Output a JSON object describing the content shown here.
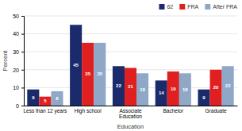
{
  "chart_data": {
    "type": "bar",
    "xlabel": "Education",
    "ylabel": "Percent",
    "categories": [
      "Less than 12 years",
      "High school",
      "Associate\nEducation",
      "Bachelor",
      "Graduate"
    ],
    "series": [
      {
        "name": "62",
        "color": "#1b2a6b",
        "values": [
          9,
          45,
          22,
          14,
          9
        ]
      },
      {
        "name": "FRA",
        "color": "#e02020",
        "values": [
          5,
          35,
          21,
          19,
          20
        ]
      },
      {
        "name": "After FRA",
        "color": "#8fa8c8",
        "values": [
          8,
          35,
          18,
          18,
          22
        ]
      }
    ],
    "ylim": [
      0,
      50
    ],
    "yticks": [
      0,
      10,
      20,
      30,
      40,
      50
    ],
    "grid": true,
    "legend": "top-right",
    "data_labels": true
  }
}
